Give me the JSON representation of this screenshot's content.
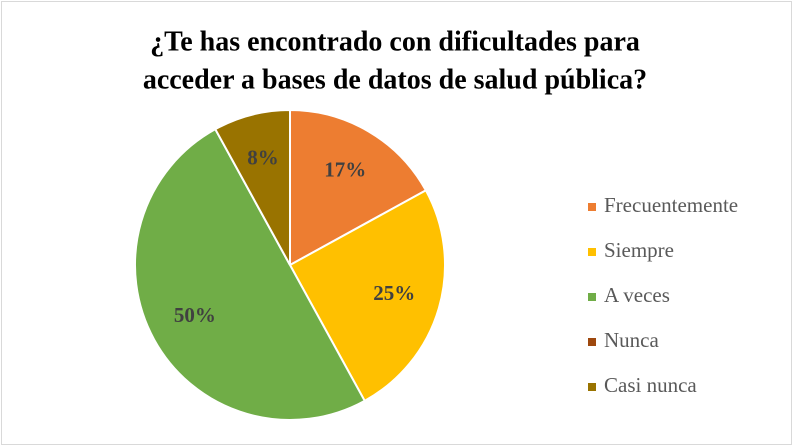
{
  "chart_data": {
    "type": "pie",
    "title": [
      "¿Te has encontrado con dificultades para",
      "acceder a bases de datos de salud pública?"
    ],
    "categories": [
      "Frecuentemente",
      "Siempre",
      "A veces",
      "Nunca",
      "Casi nunca"
    ],
    "values": [
      17,
      25,
      50,
      0,
      8
    ],
    "value_labels": [
      "17%",
      "25%",
      "50%",
      null,
      "8%"
    ],
    "colors": [
      "#ed7d31",
      "#ffc000",
      "#70ad47",
      "#9e480e",
      "#997300"
    ],
    "legend": "right"
  }
}
